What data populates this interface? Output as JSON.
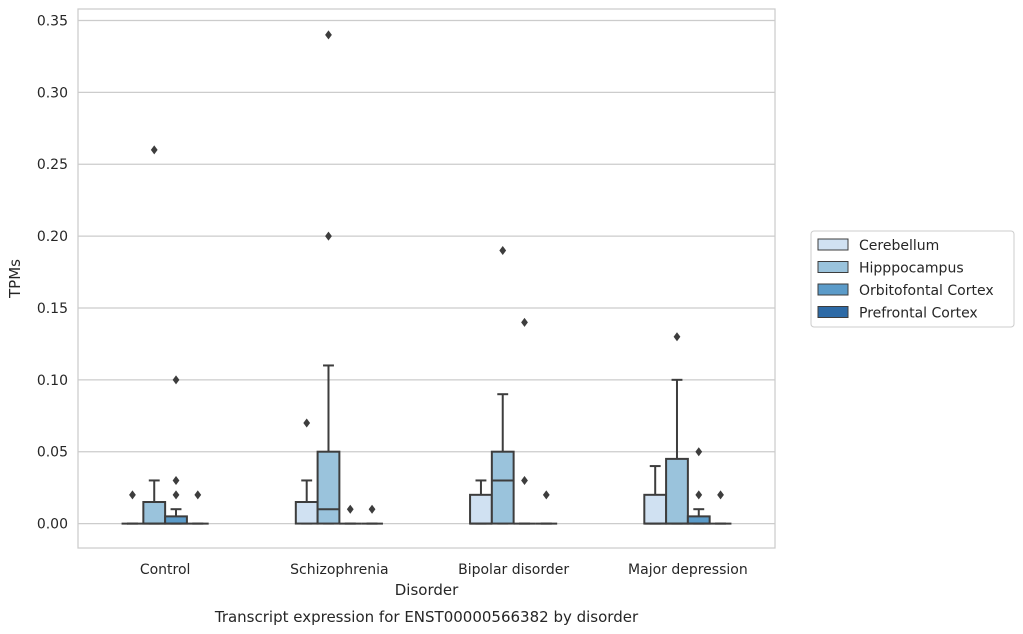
{
  "chart_data": {
    "type": "box",
    "title": "Transcript expression for ENST00000566382 by disorder",
    "xlabel": "Disorder",
    "ylabel": "TPMs",
    "ylim": [
      -0.017,
      0.358
    ],
    "yticks": [
      "0.00",
      "0.05",
      "0.10",
      "0.15",
      "0.20",
      "0.25",
      "0.30",
      "0.35"
    ],
    "grid": true,
    "legend_position": "right",
    "categories": [
      "Control",
      "Schizophrenia",
      "Bipolar disorder",
      "Major depression"
    ],
    "series": [
      {
        "name": "Cerebellum",
        "color": "#d0e1f2",
        "boxes": [
          {
            "q1": 0,
            "median": 0,
            "q3": 0,
            "whisker_low": 0,
            "whisker_high": 0,
            "outliers": [
              0.02
            ]
          },
          {
            "q1": 0,
            "median": 0.015,
            "q3": 0.015,
            "whisker_low": 0,
            "whisker_high": 0.03,
            "outliers": [
              0.07
            ]
          },
          {
            "q1": 0,
            "median": 0,
            "q3": 0.02,
            "whisker_low": 0,
            "whisker_high": 0.03,
            "outliers": []
          },
          {
            "q1": 0,
            "median": 0,
            "q3": 0.02,
            "whisker_low": 0,
            "whisker_high": 0.04,
            "outliers": []
          }
        ]
      },
      {
        "name": "Hipppocampus",
        "color": "#9ac3dc",
        "boxes": [
          {
            "q1": 0,
            "median": 0,
            "q3": 0.015,
            "whisker_low": 0,
            "whisker_high": 0.03,
            "outliers": [
              0.26
            ]
          },
          {
            "q1": 0,
            "median": 0.01,
            "q3": 0.05,
            "whisker_low": 0,
            "whisker_high": 0.11,
            "outliers": [
              0.2,
              0.34
            ]
          },
          {
            "q1": 0,
            "median": 0.03,
            "q3": 0.05,
            "whisker_low": 0,
            "whisker_high": 0.09,
            "outliers": [
              0.19
            ]
          },
          {
            "q1": 0,
            "median": 0,
            "q3": 0.045,
            "whisker_low": 0,
            "whisker_high": 0.1,
            "outliers": [
              0.13
            ]
          }
        ]
      },
      {
        "name": "Orbitofontal Cortex",
        "color": "#5b9bc9",
        "boxes": [
          {
            "q1": 0,
            "median": 0,
            "q3": 0.005,
            "whisker_low": 0,
            "whisker_high": 0.01,
            "outliers": [
              0.02,
              0.03,
              0.1
            ]
          },
          {
            "q1": 0,
            "median": 0,
            "q3": 0,
            "whisker_low": 0,
            "whisker_high": 0,
            "outliers": [
              0.01
            ]
          },
          {
            "q1": 0,
            "median": 0,
            "q3": 0,
            "whisker_low": 0,
            "whisker_high": 0,
            "outliers": [
              0.03,
              0.14
            ]
          },
          {
            "q1": 0,
            "median": 0,
            "q3": 0.005,
            "whisker_low": 0,
            "whisker_high": 0.01,
            "outliers": [
              0.02,
              0.05
            ]
          }
        ]
      },
      {
        "name": "Prefrontal Cortex",
        "color": "#2d6aa6",
        "boxes": [
          {
            "q1": 0,
            "median": 0,
            "q3": 0,
            "whisker_low": 0,
            "whisker_high": 0,
            "outliers": [
              0.02
            ]
          },
          {
            "q1": 0,
            "median": 0,
            "q3": 0,
            "whisker_low": 0,
            "whisker_high": 0,
            "outliers": [
              0.01
            ]
          },
          {
            "q1": 0,
            "median": 0,
            "q3": 0,
            "whisker_low": 0,
            "whisker_high": 0,
            "outliers": [
              0.02
            ]
          },
          {
            "q1": 0,
            "median": 0,
            "q3": 0,
            "whisker_low": 0,
            "whisker_high": 0,
            "outliers": [
              0.02
            ]
          }
        ]
      }
    ]
  }
}
